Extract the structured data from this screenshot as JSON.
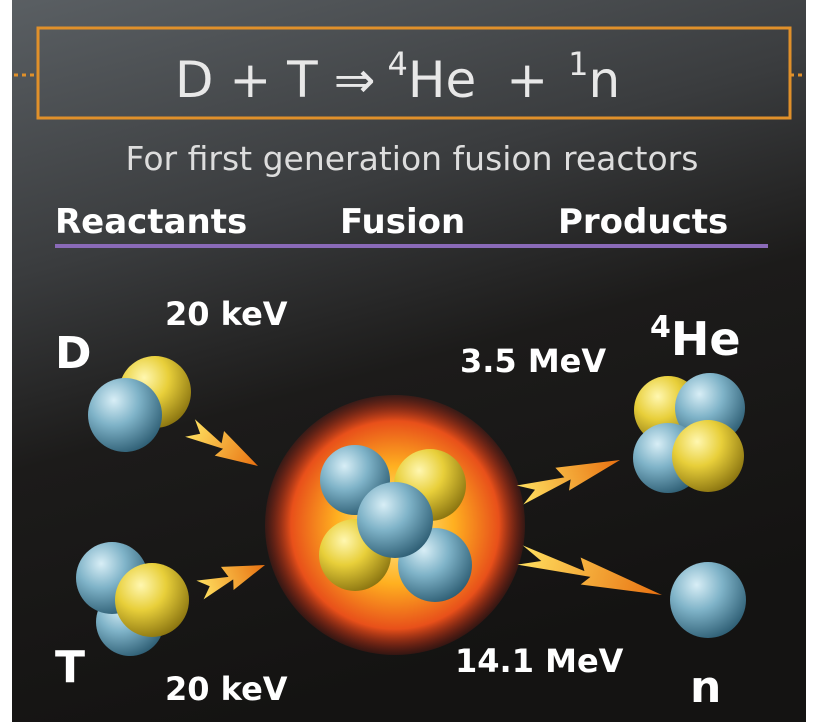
{
  "equation": {
    "left": "D + T ⇒",
    "he_mass": "4",
    "he_symbol": "He",
    "plus": "+",
    "n_mass": "1",
    "n_symbol": "n"
  },
  "subtitle": "For first generation fusion reactors",
  "headers": [
    "Reactants",
    "Fusion",
    "Products"
  ],
  "reactants": [
    {
      "label": "D",
      "energy": "20 keV"
    },
    {
      "label": "T",
      "energy": "20 keV"
    }
  ],
  "products": [
    {
      "mass": "4",
      "label": "He",
      "energy": "3.5 MeV"
    },
    {
      "label": "n",
      "energy": "14.1 MeV"
    }
  ]
}
